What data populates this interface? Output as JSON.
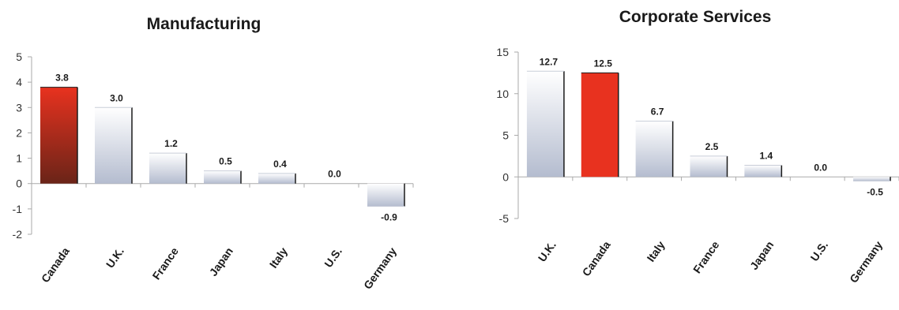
{
  "colors": {
    "highlight_top": "#e8321f",
    "highlight_bottom": "#6a2418",
    "other_top": "#ffffff",
    "other_bottom": "#b4bccf",
    "bar_edge": "#1a1a1a"
  },
  "chart_data": [
    {
      "type": "bar",
      "title": "Manufacturing",
      "categories": [
        "Canada",
        "U.K.",
        "France",
        "Japan",
        "Italy",
        "U.S.",
        "Germany"
      ],
      "values": [
        3.8,
        3.0,
        1.2,
        0.5,
        0.4,
        0.0,
        -0.9
      ],
      "value_labels": [
        "3.8",
        "3.0",
        "1.2",
        "0.5",
        "0.4",
        "0.0",
        "-0.9"
      ],
      "highlight": "Canada",
      "ylim": [
        -2,
        5
      ],
      "yticks": [
        -2,
        -1,
        0,
        1,
        2,
        3,
        4,
        5
      ],
      "ytick_labels": [
        "-2",
        "-1",
        "0",
        "1",
        "2",
        "3",
        "4",
        "5"
      ],
      "xlabel": "",
      "ylabel": "",
      "grid": false,
      "legend": "none"
    },
    {
      "type": "bar",
      "title": "Corporate Services",
      "categories": [
        "U.K.",
        "Canada",
        "Italy",
        "France",
        "Japan",
        "U.S.",
        "Germany"
      ],
      "values": [
        12.7,
        12.5,
        6.7,
        2.5,
        1.4,
        0.0,
        -0.5
      ],
      "value_labels": [
        "12.7",
        "12.5",
        "6.7",
        "2.5",
        "1.4",
        "0.0",
        "-0.5"
      ],
      "highlight": "Canada",
      "ylim": [
        -5,
        15
      ],
      "yticks": [
        -5,
        0,
        5,
        10,
        15
      ],
      "ytick_labels": [
        "-5",
        "0",
        "5",
        "10",
        "15"
      ],
      "xlabel": "",
      "ylabel": "",
      "grid": false,
      "legend": "none"
    }
  ]
}
